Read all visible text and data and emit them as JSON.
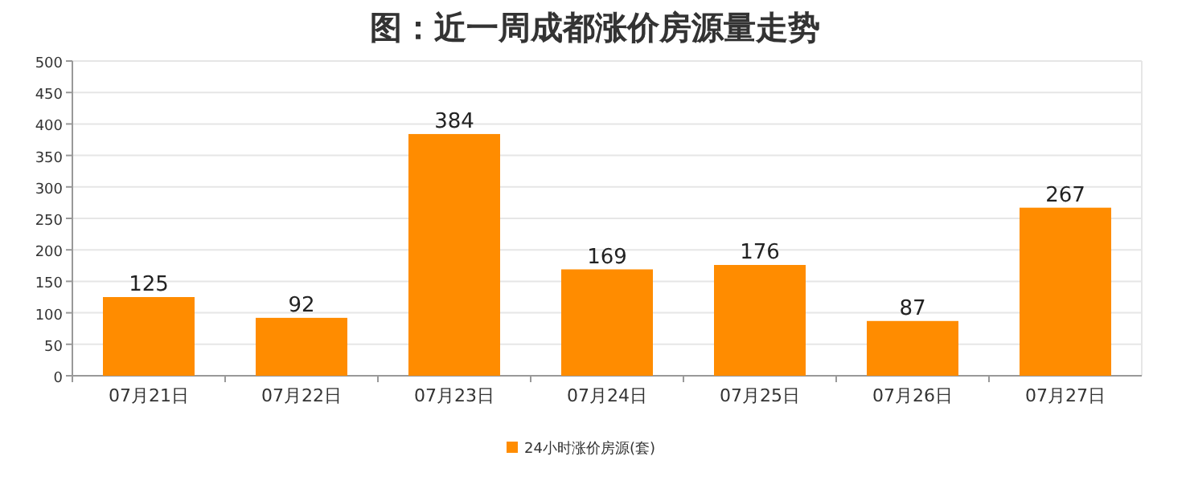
{
  "chart_data": {
    "type": "bar",
    "title": "图：近一周成都涨价房源量走势",
    "categories": [
      "07月21日",
      "07月22日",
      "07月23日",
      "07月24日",
      "07月25日",
      "07月26日",
      "07月27日"
    ],
    "series": [
      {
        "name": "24小时涨价房源(套)",
        "color": "#ff8c00",
        "values": [
          125,
          92,
          384,
          169,
          176,
          87,
          267
        ]
      }
    ],
    "ylim": [
      0,
      500
    ],
    "yticks": [
      0,
      50,
      100,
      150,
      200,
      250,
      300,
      350,
      400,
      450,
      500
    ],
    "grid": "y",
    "legend": "bottom",
    "data_labels": true
  }
}
